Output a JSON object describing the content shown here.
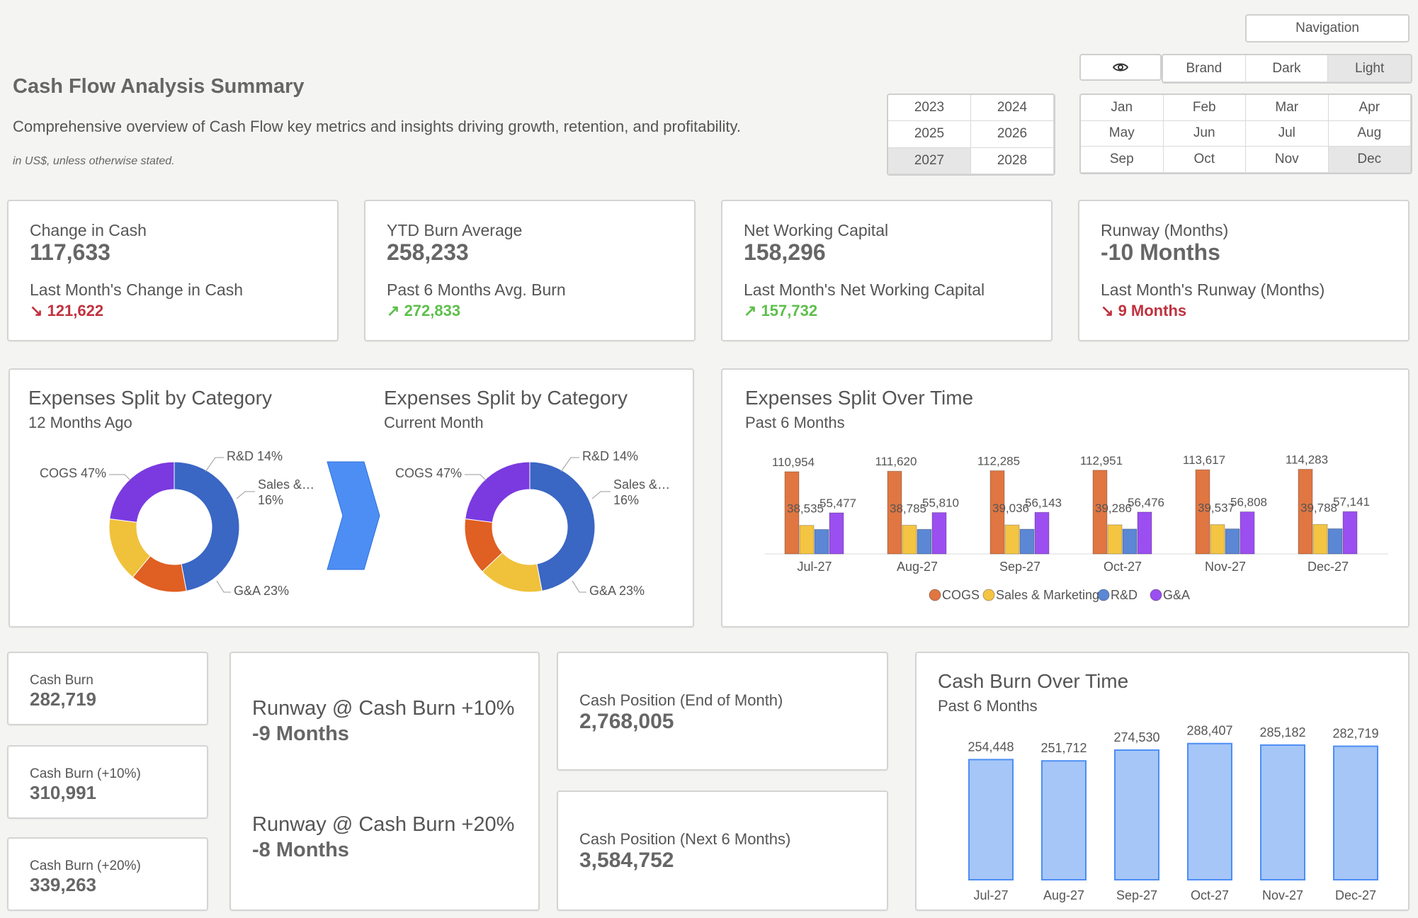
{
  "header": {
    "title": "Cash Flow Analysis Summary",
    "subtitle": "Comprehensive overview of Cash Flow key metrics and insights driving growth, retention, and profitability.",
    "note": "in US$, unless otherwise stated."
  },
  "nav": {
    "navigation_label": "Navigation",
    "themes": [
      "Brand",
      "Dark",
      "Light"
    ],
    "selected_theme": "Light",
    "years": [
      "2023",
      "2024",
      "2025",
      "2026",
      "2027",
      "2028"
    ],
    "selected_year": "2027",
    "months": [
      "Jan",
      "Feb",
      "Mar",
      "Apr",
      "May",
      "Jun",
      "Jul",
      "Aug",
      "Sep",
      "Oct",
      "Nov",
      "Dec"
    ],
    "selected_month": "Dec"
  },
  "kpis": [
    {
      "label": "Change in Cash",
      "value": "117,633",
      "sub": "Last Month's Change in Cash",
      "delta": "121,622",
      "arrow": "↘",
      "trend": "down"
    },
    {
      "label": "YTD Burn Average",
      "value": "258,233",
      "sub": "Past 6 Months Avg. Burn",
      "delta": "272,833",
      "arrow": "↗",
      "trend": "up"
    },
    {
      "label": "Net Working Capital",
      "value": "158,296",
      "sub": "Last Month's Net Working Capital",
      "delta": "157,732",
      "arrow": "↗",
      "trend": "up"
    },
    {
      "label": "Runway (Months)",
      "value": "-10 Months",
      "sub": "Last Month's Runway (Months)",
      "delta": "9 Months",
      "arrow": "↘",
      "trend": "down"
    }
  ],
  "expenses_split": {
    "left": {
      "title": "Expenses Split by Category",
      "subtitle": "12 Months Ago"
    },
    "right": {
      "title": "Expenses Split by Category",
      "subtitle": "Current Month"
    }
  },
  "split_over_time": {
    "title": "Expenses Split Over Time",
    "subtitle": "Past 6 Months"
  },
  "cash_burn_cards": [
    {
      "label": "Cash Burn",
      "value": "282,719"
    },
    {
      "label": "Cash Burn (+10%)",
      "value": "310,991"
    },
    {
      "label": "Cash Burn (+20%)",
      "value": "339,263"
    }
  ],
  "runway_scenarios": [
    {
      "label": "Runway @ Cash Burn +10%",
      "value": "-9 Months"
    },
    {
      "label": "Runway @ Cash Burn +20%",
      "value": "-8 Months"
    }
  ],
  "cash_position": [
    {
      "label": "Cash Position (End of Month)",
      "value": "2,768,005"
    },
    {
      "label": "Cash Position (Next 6 Months)",
      "value": "3,584,752"
    }
  ],
  "cash_burn_over_time": {
    "title": "Cash Burn Over Time",
    "subtitle": "Past 6 Months"
  },
  "colors": {
    "cogs": "#e07642",
    "sales": "#f4c543",
    "rnd": "#5b87d4",
    "ga": "#9b4ff0",
    "burn": "#a5c6f7",
    "burn_stroke": "#4d8ef5",
    "cogs_donut": "#3a66c4",
    "rnd_donut": "#e05f22",
    "sales_donut": "#f0c13b",
    "ga_donut": "#7a3ae0"
  },
  "chart_data": [
    {
      "type": "pie",
      "title": "Expenses Split by Category",
      "subtitle": "12 Months Ago",
      "categories": [
        "COGS",
        "R&D",
        "Sales & Marketing",
        "G&A"
      ],
      "values": [
        47,
        14,
        16,
        23
      ],
      "labels": [
        "COGS 47%",
        "R&D 14%",
        "Sales &…",
        "16%",
        "G&A 23%"
      ]
    },
    {
      "type": "pie",
      "title": "Expenses Split by Category",
      "subtitle": "Current Month",
      "categories": [
        "COGS",
        "Sales & Marketing",
        "R&D",
        "G&A"
      ],
      "values": [
        47,
        16,
        14,
        23
      ],
      "labels": [
        "COGS 47%",
        "R&D 14%",
        "Sales &…",
        "16%",
        "G&A 23%"
      ]
    },
    {
      "type": "bar",
      "title": "Expenses Split Over Time",
      "subtitle": "Past 6 Months",
      "categories": [
        "Jul-27",
        "Aug-27",
        "Sep-27",
        "Oct-27",
        "Nov-27",
        "Dec-27"
      ],
      "series": [
        {
          "name": "COGS",
          "values": [
            110954,
            111620,
            112285,
            112951,
            113617,
            114283
          ],
          "labels": [
            "110,954",
            "111,620",
            "112,285",
            "112,951",
            "113,617",
            "114,283"
          ]
        },
        {
          "name": "Sales & Marketing",
          "values": [
            38535,
            38785,
            39036,
            39286,
            39537,
            39788
          ],
          "labels": [
            "38,535",
            "38,785",
            "39,036",
            "39,286",
            "39,537",
            "39,788"
          ]
        },
        {
          "name": "R&D",
          "values": [
            33000,
            33200,
            33400,
            33600,
            33800,
            34000
          ]
        },
        {
          "name": "G&A",
          "values": [
            55477,
            55810,
            56143,
            56476,
            56808,
            57141
          ],
          "labels": [
            "55,477",
            "55,810",
            "56,143",
            "56,476",
            "56,808",
            "57,141"
          ]
        }
      ],
      "legend": [
        "COGS",
        "Sales & Marketing",
        "R&D",
        "G&A"
      ],
      "ylim": [
        0,
        120000
      ]
    },
    {
      "type": "bar",
      "title": "Cash Burn Over Time",
      "subtitle": "Past 6 Months",
      "categories": [
        "Jul-27",
        "Aug-27",
        "Sep-27",
        "Oct-27",
        "Nov-27",
        "Dec-27"
      ],
      "values": [
        254448,
        251712,
        274530,
        288407,
        285182,
        282719
      ],
      "labels": [
        "254,448",
        "251,712",
        "274,530",
        "288,407",
        "285,182",
        "282,719"
      ],
      "ylim": [
        0,
        300000
      ]
    }
  ]
}
